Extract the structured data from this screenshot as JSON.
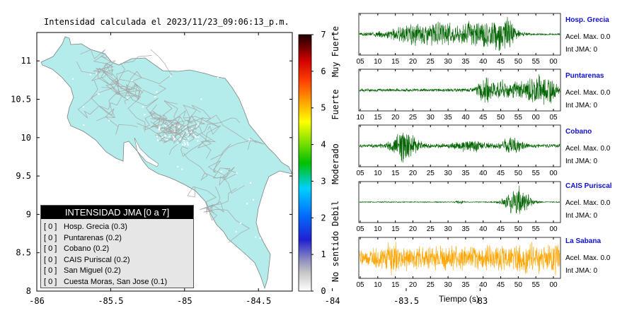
{
  "title": "Intensidad calculada el 2023/11/23_09:06:13_p.m.",
  "map": {
    "xticks": [
      "-86",
      "-85.5",
      "-85",
      "-84.5",
      "-84",
      "-83.5",
      "-83"
    ],
    "yticks": [
      "11",
      "10.5",
      "10",
      "9.5",
      "9",
      "8.5",
      "8"
    ],
    "land_color": "#b4ecec",
    "road_color": "#a6a6a6"
  },
  "colorbar": {
    "ticks": [
      "0",
      "1",
      "2",
      "3",
      "4",
      "5",
      "6",
      "7"
    ],
    "labels": [
      "No sentido",
      "Debil",
      "Moderado",
      "Fuerte",
      "Muy Fuerte"
    ]
  },
  "legend": {
    "header": "INTENSIDAD JMA [0 a 7]",
    "items": [
      {
        "level": "[ 0 ]",
        "name": "Hosp. Grecia (0.3)"
      },
      {
        "level": "[ 0 ]",
        "name": "Puntarenas (0.2)"
      },
      {
        "level": "[ 0 ]",
        "name": "Cobano (0.2)"
      },
      {
        "level": "[ 0 ]",
        "name": "CAIS Puriscal (0.2)"
      },
      {
        "level": "[ 0 ]",
        "name": "San Miguel (0.2)"
      },
      {
        "level": "[ 0 ]",
        "name": "Cuesta Moras, San Jose (0.1)"
      }
    ]
  },
  "stations": [
    {
      "name": "Hosp. Grecia",
      "accel": "Acel. Max. 0.0",
      "jma": "Int JMA: 0",
      "color": "#006400",
      "ticks": [
        "05",
        "10",
        "15",
        "20",
        "25",
        "30",
        "35",
        "40",
        "45",
        "50",
        "55",
        "00"
      ]
    },
    {
      "name": "Puntarenas",
      "accel": "Acel. Max. 0.0",
      "jma": "Int JMA: 0",
      "color": "#006400",
      "ticks": [
        "10",
        "15",
        "20",
        "25",
        "30",
        "35",
        "40",
        "45",
        "50",
        "55",
        "00",
        "05"
      ]
    },
    {
      "name": "Cobano",
      "accel": "Acel. Max. 0.0",
      "jma": "Int JMA: 0",
      "color": "#006400",
      "ticks": [
        "05",
        "10",
        "15",
        "20",
        "25",
        "30",
        "35",
        "40",
        "45",
        "50",
        "55",
        "00"
      ]
    },
    {
      "name": "CAIS Puriscal",
      "accel": "Acel. Max. 0.0",
      "jma": "Int JMA: 0",
      "color": "#006400",
      "ticks": [
        "05",
        "10",
        "15",
        "20",
        "25",
        "30",
        "35",
        "40",
        "45",
        "50",
        "55",
        "00"
      ]
    },
    {
      "name": "La Sabana",
      "accel": "Acel. Max. 0.0",
      "jma": "Int JMA: 0",
      "color": "#ffa500",
      "ticks": [
        "05",
        "10",
        "15",
        "20",
        "25",
        "30",
        "35",
        "40",
        "45",
        "50",
        "55",
        "00"
      ]
    }
  ],
  "xlabel": "Tiempo (s)",
  "chart_data": [
    {
      "type": "map",
      "title": "Intensidad calculada el 2023/11/23_09:06:13_p.m.",
      "xlim": [
        -86,
        -82.6
      ],
      "ylim": [
        8,
        11.3
      ],
      "colorbar_range": [
        0,
        7
      ],
      "stations_jma": [
        {
          "name": "Hosp. Grecia",
          "value": 0.3
        },
        {
          "name": "Puntarenas",
          "value": 0.2
        },
        {
          "name": "Cobano",
          "value": 0.2
        },
        {
          "name": "CAIS Puriscal",
          "value": 0.2
        },
        {
          "name": "San Miguel",
          "value": 0.2
        },
        {
          "name": "Cuesta Moras, San Jose",
          "value": 0.1
        }
      ]
    },
    {
      "type": "line",
      "xlabel": "Tiempo (s)",
      "series": [
        {
          "name": "Hosp. Grecia",
          "burst_centers_s": [
            30,
            47
          ],
          "relative_amplitude": 1.0
        },
        {
          "name": "Puntarenas",
          "burst_centers_s": [
            47,
            62
          ],
          "relative_amplitude": 0.8
        },
        {
          "name": "Cobano",
          "burst_centers_s": [
            19
          ],
          "relative_amplitude": 1.0
        },
        {
          "name": "CAIS Puriscal",
          "burst_centers_s": [
            48
          ],
          "relative_amplitude": 1.0
        },
        {
          "name": "La Sabana",
          "burst_centers_s": [],
          "relative_amplitude": 0.7
        }
      ]
    }
  ]
}
